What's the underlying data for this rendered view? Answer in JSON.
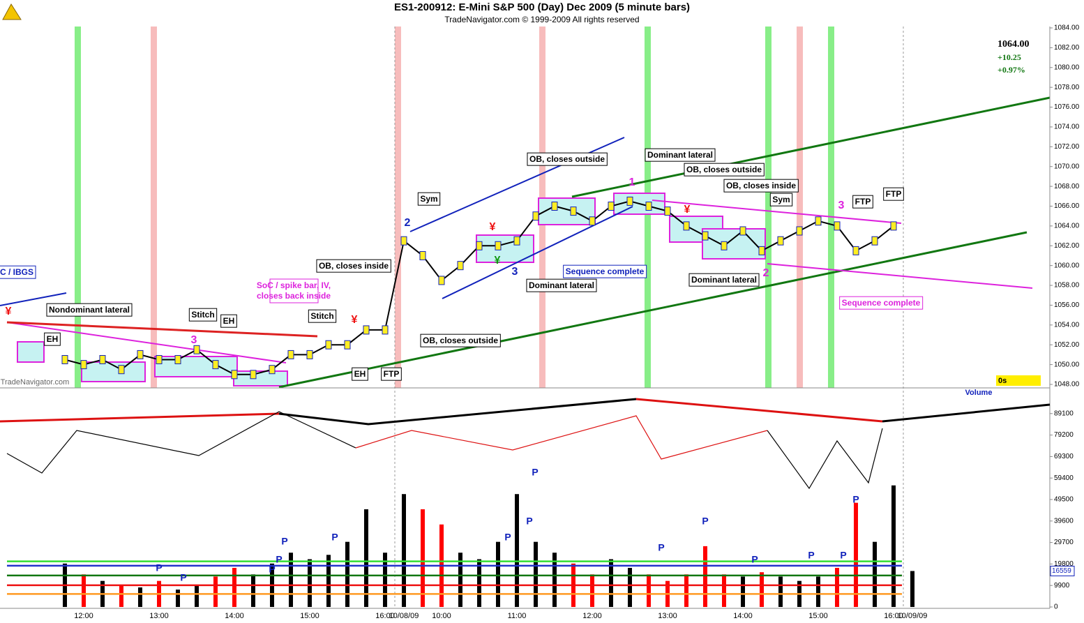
{
  "chart_data": [
    {
      "type": "line",
      "title": "ES1-200912:  E-Mini S&P 500 (Day) Dec 2009  (5 minute bars)",
      "subtitle": "TradeNavigator.com © 1999-2009 All rights reserved",
      "watermark": "TradeNavigator.com",
      "categories": [
        null,
        "12:00",
        null,
        null,
        null,
        "13:00",
        null,
        null,
        null,
        "14:00",
        null,
        null,
        null,
        "15:00",
        null,
        null,
        null,
        "16:00",
        "10/08/09",
        null,
        "10:00",
        null,
        null,
        null,
        "11:00",
        null,
        null,
        null,
        "12:00",
        null,
        null,
        null,
        "13:00",
        null,
        null,
        null,
        "14:00",
        null,
        null,
        null,
        "15:00",
        null,
        null,
        null,
        "16:00",
        "10/09/09"
      ],
      "values": [
        1050.5,
        1050,
        1050.5,
        1049.5,
        1051,
        1050.5,
        1050.5,
        1051.5,
        1050,
        1049,
        1049,
        1049.5,
        1051,
        1051,
        1052,
        1052,
        1053.5,
        1053.5,
        1062.5,
        1061,
        1058.5,
        1060,
        1062,
        1062,
        1062.5,
        1065,
        1066,
        1065.5,
        1064.5,
        1066,
        1066.5,
        1066,
        1065.5,
        1064,
        1063,
        1062,
        1063.5,
        1061.5,
        1062.5,
        1063.5,
        1064.5,
        1064,
        1061.5,
        1062.5,
        1064,
        null
      ],
      "color": "#000000",
      "ylim": [
        1048,
        1084
      ],
      "yticks": [
        {
          "value": 1048,
          "label": "1048.00"
        },
        {
          "value": 1050,
          "label": "1050.00"
        },
        {
          "value": 1052,
          "label": "1052.00"
        },
        {
          "value": 1054,
          "label": "1054.00"
        },
        {
          "value": 1056,
          "label": "1056.00"
        },
        {
          "value": 1058,
          "label": "1058.00"
        },
        {
          "value": 1060,
          "label": "1060.00"
        },
        {
          "value": 1062,
          "label": "1062.00"
        },
        {
          "value": 1064,
          "label": "1064.00"
        },
        {
          "value": 1066,
          "label": "1066.00"
        },
        {
          "value": 1068,
          "label": "1068.00"
        },
        {
          "value": 1070,
          "label": "1070.00"
        },
        {
          "value": 1072,
          "label": "1072.00"
        },
        {
          "value": 1074,
          "label": "1074.00"
        },
        {
          "value": 1076,
          "label": "1076.00"
        },
        {
          "value": 1078,
          "label": "1078.00"
        },
        {
          "value": 1080,
          "label": "1080.00"
        },
        {
          "value": 1082,
          "label": "1082.00"
        },
        {
          "value": 1084,
          "label": "1084.00"
        }
      ],
      "last": {
        "value": 1064,
        "label": "1064.00"
      },
      "change": {
        "value": 10.25,
        "label": "+10.25"
      },
      "change_pct": {
        "value": 0.97,
        "label": "+0.97%"
      },
      "timer": "0s",
      "annotations": [
        "C / IBGS",
        "Nondominant lateral",
        "EH",
        "Stitch",
        "EH",
        "3",
        "SoC / spike bar, IV,",
        "closes back inside",
        "Stitch",
        "OB, closes inside",
        "EH",
        "FTP",
        "2",
        "Sym",
        "OB, closes outside",
        "3",
        "OB, closes outside",
        "Dominant lateral",
        "Sequence complete",
        "1",
        "Dominant lateral",
        "OB, closes outside",
        "OB, closes inside",
        "Sym",
        "Dominant lateral",
        "2",
        "3",
        "FTP",
        "FTP",
        "Sequence complete",
        "¥",
        "¥",
        "¥",
        "¥",
        "¥"
      ]
    },
    {
      "type": "bar",
      "name": "Volume",
      "categories": [
        null,
        "12:00",
        null,
        null,
        null,
        "13:00",
        null,
        null,
        null,
        "14:00",
        null,
        null,
        null,
        "15:00",
        null,
        null,
        null,
        "16:00",
        "10/08/09",
        null,
        "10:00",
        null,
        null,
        null,
        "11:00",
        null,
        null,
        null,
        "12:00",
        null,
        null,
        null,
        "13:00",
        null,
        null,
        null,
        "14:00",
        null,
        null,
        null,
        "15:00",
        null,
        null,
        null,
        "16:00",
        "10/09/09"
      ],
      "values": [
        20000,
        15000,
        12000,
        10000,
        9000,
        12000,
        8000,
        10000,
        14000,
        18000,
        15000,
        20000,
        25000,
        22000,
        24000,
        30000,
        45000,
        25000,
        52000,
        45000,
        38000,
        25000,
        22000,
        30000,
        52000,
        30000,
        25000,
        20000,
        15000,
        22000,
        18000,
        15000,
        12000,
        15000,
        28000,
        15000,
        14000,
        16000,
        14000,
        12000,
        14000,
        18000,
        48000,
        30000,
        56000,
        16559
      ],
      "up_color": "#000000",
      "down_color": "#ff0000",
      "ylim": [
        0,
        99000
      ],
      "yticks": [
        0,
        9900,
        19800,
        29700,
        39600,
        49500,
        59400,
        69300,
        79200,
        89100
      ],
      "current_value": 16559,
      "reference_lines": [
        {
          "value": 21000,
          "color": "#33dd33"
        },
        {
          "value": 19000,
          "color": "#2233cc"
        },
        {
          "value": 14500,
          "color": "#117711"
        },
        {
          "value": 10000,
          "color": "#ee1111"
        },
        {
          "value": 6000,
          "color": "#ff9922"
        }
      ],
      "pivot_labels": [
        "P",
        "P",
        "P",
        "P",
        "P",
        "P",
        "P",
        "P",
        "P",
        "P",
        "P",
        "P",
        "P",
        "P",
        "P"
      ]
    }
  ]
}
